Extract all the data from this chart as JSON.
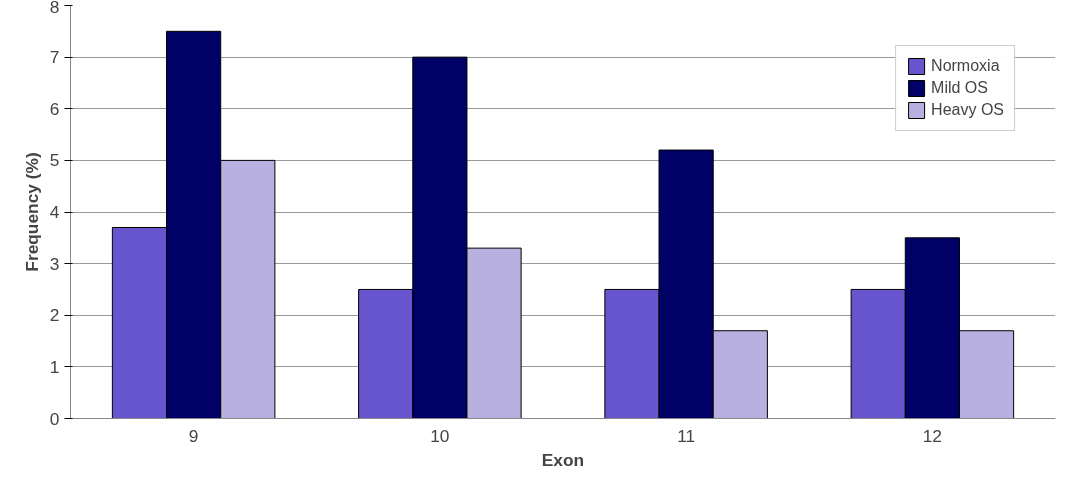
{
  "chart_data": {
    "type": "bar",
    "xlabel": "Exon",
    "ylabel": "Frequency (%)",
    "categories": [
      "9",
      "10",
      "11",
      "12"
    ],
    "series": [
      {
        "name": "Normoxia",
        "color": "#6655cc",
        "values": [
          3.7,
          2.5,
          2.5,
          2.5
        ]
      },
      {
        "name": "Mild OS",
        "color": "#000066",
        "values": [
          7.5,
          7.0,
          5.2,
          3.5
        ]
      },
      {
        "name": "Heavy OS",
        "color": "#b8b0e0",
        "values": [
          5.0,
          3.3,
          1.7,
          1.7
        ]
      }
    ],
    "ylim": [
      0,
      8
    ],
    "yticks": [
      0,
      1,
      2,
      3,
      4,
      5,
      6,
      7,
      8
    ],
    "grid": "y",
    "legend": "top right"
  }
}
